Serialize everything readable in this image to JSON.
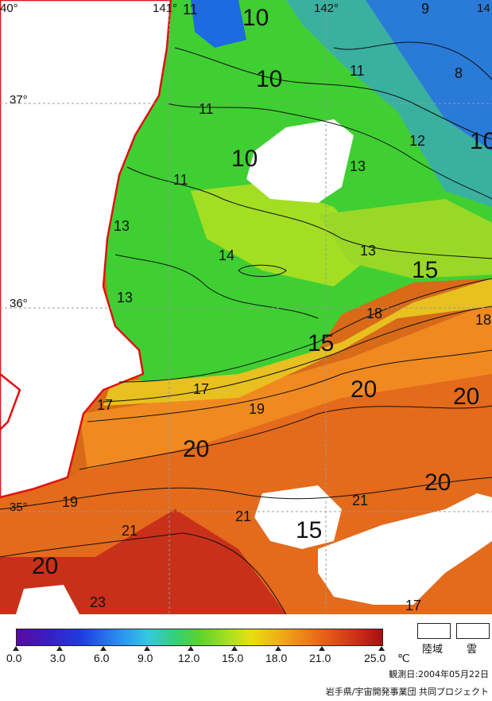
{
  "map": {
    "coord_labels": {
      "lon_140": "40°",
      "lon_141": "141°",
      "lon_142": "142°",
      "lon_143": "14",
      "lat_37": "37°",
      "lat_36": "36°",
      "lat_35": "35°"
    },
    "contour_labels": [
      "11",
      "10",
      "9",
      "8",
      "11",
      "10",
      "11",
      "12",
      "10",
      "13",
      "11",
      "10",
      "13",
      "14",
      "13",
      "15",
      "13",
      "18",
      "18",
      "15",
      "17",
      "20",
      "20",
      "17",
      "19",
      "20",
      "20",
      "19",
      "21",
      "21",
      "15",
      "21",
      "20",
      "23",
      "17"
    ]
  },
  "legend": {
    "tick_labels": [
      "0.0",
      "3.0",
      "6.0",
      "9.0",
      "12.0",
      "15.0",
      "18.0",
      "21.0",
      "25.0"
    ],
    "unit": "℃",
    "land_label": "陸域",
    "cloud_label": "雲",
    "observation_date": "観測日:2004年05月22日",
    "credit": "岩手県/宇宙開発事業団 共同プロジェクト"
  }
}
